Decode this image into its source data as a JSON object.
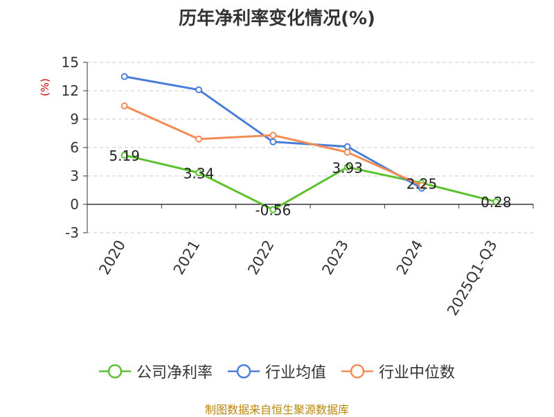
{
  "chart_data": {
    "type": "line",
    "title": "历年净利率变化情况(%)",
    "xlabel": "",
    "ylabel": "(%)",
    "categories": [
      "2020",
      "2021",
      "2022",
      "2023",
      "2024",
      "2025Q1-Q3"
    ],
    "ylim": [
      -3,
      15
    ],
    "yticks": [
      -3,
      0,
      3,
      6,
      9,
      12,
      15
    ],
    "grid": true,
    "legend_position": "bottom",
    "series": [
      {
        "name": "公司净利率",
        "color": "#5cc12e",
        "values": [
          5.19,
          3.34,
          -0.56,
          3.93,
          2.25,
          0.28
        ],
        "labels": [
          "5.19",
          "3.34",
          "-0.56",
          "3.93",
          "2.25",
          "0.28"
        ]
      },
      {
        "name": "行业均值",
        "color": "#4a7edb",
        "values": [
          13.5,
          12.1,
          6.6,
          6.1,
          1.7,
          null
        ],
        "labels": null
      },
      {
        "name": "行业中位数",
        "color": "#f28b54",
        "values": [
          10.4,
          6.9,
          7.3,
          5.5,
          2.0,
          null
        ],
        "labels": null
      }
    ]
  },
  "source": "制图数据来自恒生聚源数据库"
}
